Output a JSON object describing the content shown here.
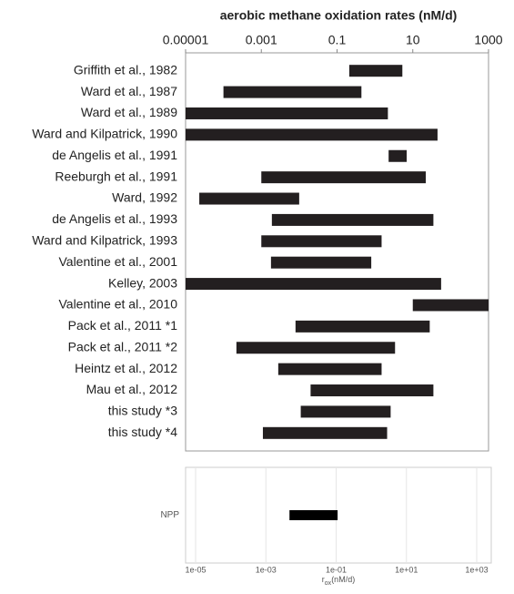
{
  "chart_data": [
    {
      "type": "range_bar",
      "title": "aerobic methane oxidation rates (nM/d)",
      "log_x": true,
      "categories": [
        "Griffith et al., 1982",
        "Ward et al., 1987",
        "Ward et al., 1989",
        "Ward and Kilpatrick, 1990",
        "de Angelis et al., 1991",
        "Reeburgh et al., 1991",
        "Ward, 1992",
        "de Angelis et al., 1993",
        "Ward and Kilpatrick, 1993",
        "Valentine et al., 2001",
        "Kelley, 2003",
        "Valentine et al., 2010",
        "Pack et al., 2011 *1",
        "Pack et al., 2011 *2",
        "Heintz et al., 2012",
        "Mau et al., 2012",
        "this study  *3",
        "this study  *4"
      ],
      "values": [
        [
          0.21,
          5.3
        ],
        [
          0.0001,
          0.44
        ],
        [
          1e-05,
          2.2
        ],
        [
          1e-05,
          45
        ],
        [
          2.3,
          6.9
        ],
        [
          0.001,
          22
        ],
        [
          2.3e-05,
          0.01
        ],
        [
          0.0019,
          35
        ],
        [
          0.001,
          1.5
        ],
        [
          0.0018,
          0.8
        ],
        [
          1e-05,
          56
        ],
        [
          10,
          1000
        ],
        [
          0.008,
          28
        ],
        [
          0.00022,
          3.4
        ],
        [
          0.0028,
          1.5
        ],
        [
          0.02,
          35
        ],
        [
          0.011,
          2.6
        ],
        [
          0.0011,
          2.1
        ]
      ],
      "color": "#231f20",
      "xlim": [
        1e-05,
        1000
      ],
      "xticks": [
        1e-05,
        0.001,
        0.1,
        10,
        1000
      ],
      "grid": false
    },
    {
      "type": "range_bar",
      "log_x": true,
      "xlabel": {
        "main": "r",
        "sub": "ox",
        "rest": "(nM/d)"
      },
      "categories": [
        "NPP"
      ],
      "values": [
        [
          0.0047,
          0.11
        ]
      ],
      "color": "#000000",
      "xlim": [
        1e-05,
        1000
      ],
      "xticks": [
        {
          "value": 1e-05,
          "label": "1e-05"
        },
        {
          "value": 0.001,
          "label": "1e-03"
        },
        {
          "value": 0.1,
          "label": "1e-01"
        },
        {
          "value": 10,
          "label": "1e+01"
        },
        {
          "value": 1000,
          "label": "1e+03"
        }
      ],
      "grid": true
    }
  ]
}
